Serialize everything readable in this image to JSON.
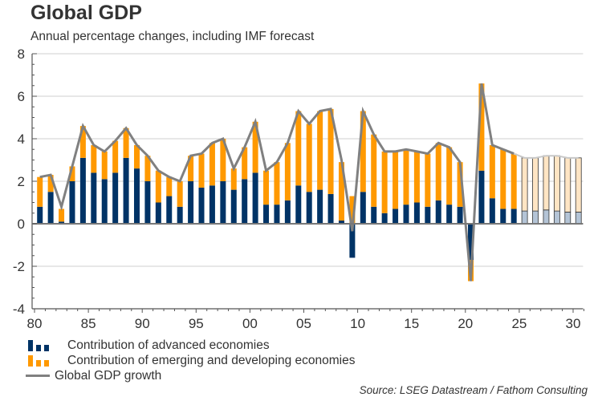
{
  "chart_data": {
    "type": "bar",
    "title": "Global GDP",
    "subtitle": "Annual percentage changes, including IMF forecast",
    "xlabel": "",
    "ylabel": "",
    "ylim": [
      -4,
      8
    ],
    "yticks": [
      -4,
      -2,
      0,
      2,
      4,
      6,
      8
    ],
    "xlim": [
      1980,
      2031
    ],
    "xticks": [
      {
        "year": 1980,
        "label": "80"
      },
      {
        "year": 1985,
        "label": "85"
      },
      {
        "year": 1990,
        "label": "90"
      },
      {
        "year": 1995,
        "label": "95"
      },
      {
        "year": 2000,
        "label": "00"
      },
      {
        "year": 2005,
        "label": "05"
      },
      {
        "year": 2010,
        "label": "10"
      },
      {
        "year": 2015,
        "label": "15"
      },
      {
        "year": 2020,
        "label": "20"
      },
      {
        "year": 2025,
        "label": "25"
      },
      {
        "year": 2030,
        "label": "30"
      }
    ],
    "grid": true,
    "stacked": true,
    "forecast_from": 2025,
    "categories": [
      1980,
      1981,
      1982,
      1983,
      1984,
      1985,
      1986,
      1987,
      1988,
      1989,
      1990,
      1991,
      1992,
      1993,
      1994,
      1995,
      1996,
      1997,
      1998,
      1999,
      2000,
      2001,
      2002,
      2003,
      2004,
      2005,
      2006,
      2007,
      2008,
      2009,
      2010,
      2011,
      2012,
      2013,
      2014,
      2015,
      2016,
      2017,
      2018,
      2019,
      2020,
      2021,
      2022,
      2023,
      2024,
      2025,
      2026,
      2027,
      2028,
      2029,
      2030
    ],
    "series": [
      {
        "name": "Contribution of advanced economies",
        "kind": "bar",
        "color": "#003366",
        "forecast_color": "#b4c4d6",
        "values": [
          0.8,
          1.5,
          0.1,
          2.0,
          3.1,
          2.4,
          2.1,
          2.4,
          3.1,
          2.6,
          2.0,
          1.0,
          1.3,
          0.8,
          2.0,
          1.7,
          1.8,
          2.0,
          1.6,
          2.1,
          2.4,
          0.9,
          0.9,
          1.1,
          1.8,
          1.5,
          1.6,
          1.4,
          0.15,
          -1.6,
          1.5,
          0.8,
          0.5,
          0.7,
          0.9,
          1.0,
          0.8,
          1.1,
          0.9,
          0.8,
          -1.7,
          2.5,
          1.2,
          0.7,
          0.7,
          0.6,
          0.6,
          0.65,
          0.6,
          0.55,
          0.55
        ]
      },
      {
        "name": "Contribution of emerging and developing economies",
        "kind": "bar",
        "color": "#ff9900",
        "forecast_color": "#ffe5c4",
        "values": [
          1.4,
          0.8,
          0.6,
          0.7,
          1.5,
          1.3,
          1.3,
          1.5,
          1.4,
          1.1,
          1.2,
          1.5,
          0.9,
          1.2,
          1.2,
          1.6,
          2.0,
          2.0,
          1.0,
          1.5,
          2.4,
          1.6,
          2.0,
          2.7,
          3.5,
          3.2,
          3.7,
          4.0,
          2.75,
          1.3,
          3.8,
          3.4,
          2.9,
          2.7,
          2.6,
          2.4,
          2.5,
          2.7,
          2.7,
          2.1,
          -1.0,
          4.1,
          2.5,
          2.8,
          2.6,
          2.5,
          2.5,
          2.55,
          2.6,
          2.55,
          2.55
        ]
      },
      {
        "name": "Global GDP growth",
        "kind": "line",
        "color": "#808080",
        "values": [
          2.2,
          2.3,
          0.8,
          2.7,
          4.6,
          3.7,
          3.4,
          3.9,
          4.5,
          3.7,
          3.2,
          2.5,
          2.2,
          2.0,
          3.2,
          3.3,
          3.8,
          4.0,
          2.6,
          3.6,
          4.8,
          2.5,
          2.9,
          3.8,
          5.3,
          4.7,
          5.3,
          5.4,
          3.0,
          -0.35,
          5.3,
          4.2,
          3.4,
          3.4,
          3.5,
          3.4,
          3.3,
          3.8,
          3.6,
          2.9,
          -2.7,
          6.6,
          3.7,
          3.5,
          3.3,
          3.1,
          3.1,
          3.2,
          3.2,
          3.1,
          3.1
        ]
      }
    ],
    "legend": [
      {
        "label": "Contribution of advanced economies",
        "swatch": "bars",
        "color": "#003366"
      },
      {
        "label": "Contribution of emerging and developing economies",
        "swatch": "bars",
        "color": "#ff9900"
      },
      {
        "label": "Global GDP growth",
        "swatch": "line",
        "color": "#808080"
      }
    ],
    "legend_position": "bottom-left",
    "source": "Source: LSEG Datastream / Fathom Consulting"
  }
}
